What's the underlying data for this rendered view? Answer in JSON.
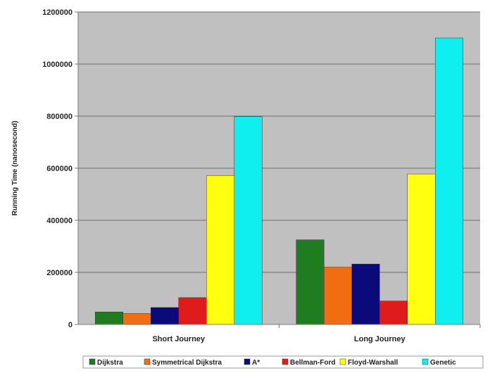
{
  "chart_data": {
    "type": "bar",
    "title": "",
    "xlabel": "",
    "ylabel": "Running Time (nanosecond)",
    "categories": [
      "Short Journey",
      "Long Journey"
    ],
    "ylim": [
      0,
      1200000
    ],
    "yticks": [
      "0",
      "200000",
      "400000",
      "600000",
      "800000",
      "1000000",
      "1200000"
    ],
    "grid": true,
    "plot_background": "#c0c0c0",
    "legend_position": "bottom",
    "series": [
      {
        "name": "Dijkstra",
        "color": "#1f7d1f",
        "values": [
          48000,
          325000
        ]
      },
      {
        "name": "Symmetrical Dijkstra",
        "color": "#f26d12",
        "values": [
          42000,
          220000
        ]
      },
      {
        "name": "A*",
        "color": "#0a0a7a",
        "values": [
          65000,
          232000
        ]
      },
      {
        "name": "Bellman-Ford",
        "color": "#e01b1b",
        "values": [
          103000,
          90000
        ]
      },
      {
        "name": "Floyd-Warshall",
        "color": "#ffff10",
        "values": [
          572000,
          578000
        ]
      },
      {
        "name": "Genetic",
        "color": "#10efef",
        "values": [
          798000,
          1100000
        ]
      }
    ]
  }
}
